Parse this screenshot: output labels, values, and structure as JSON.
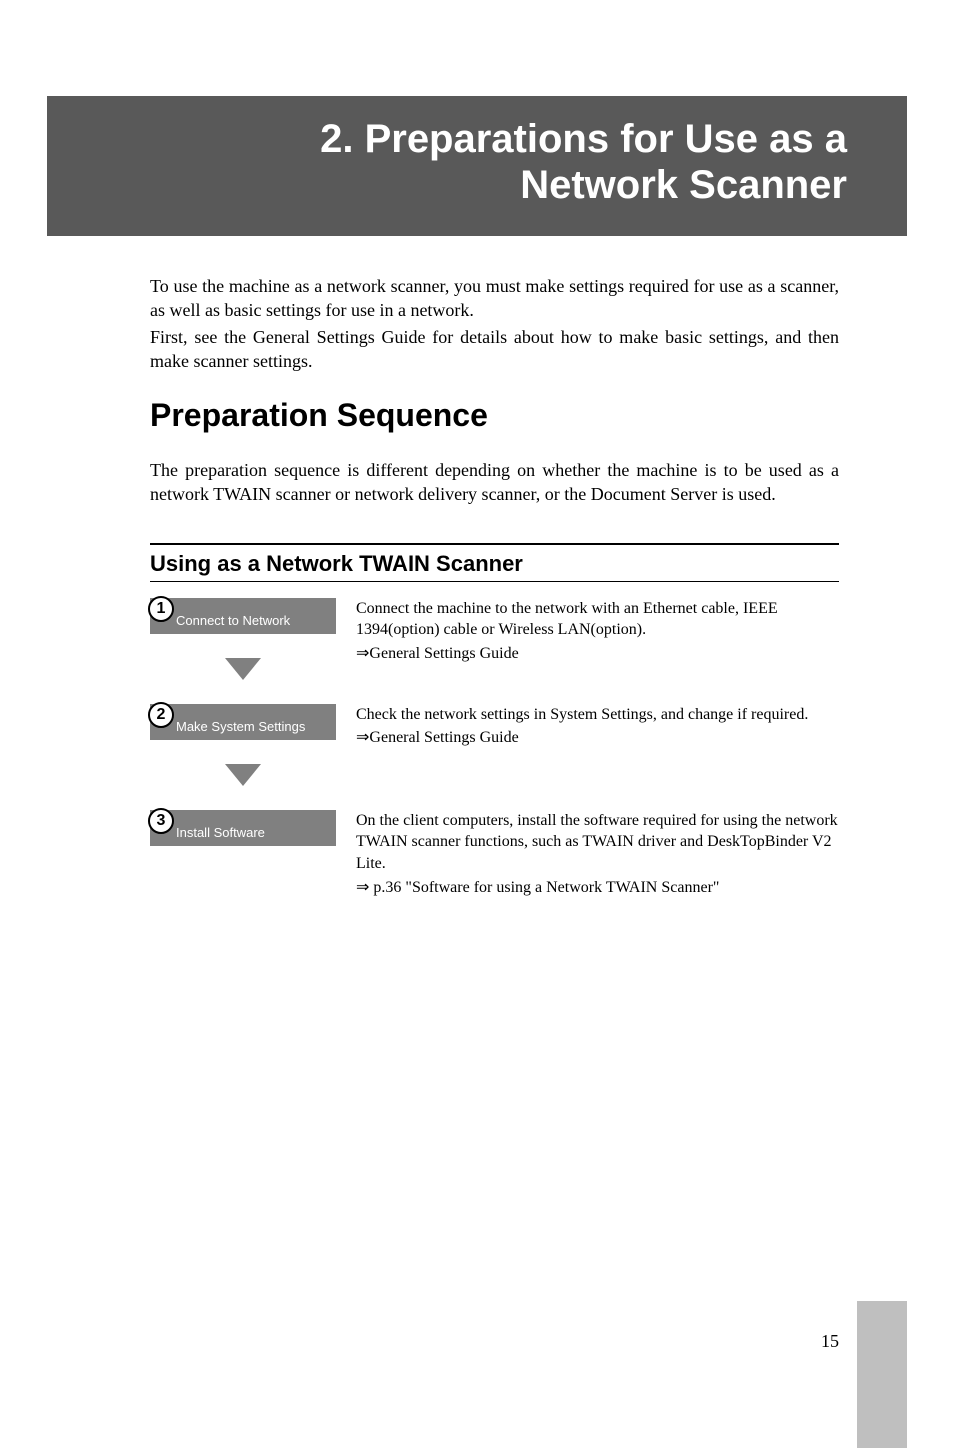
{
  "chapter": {
    "number": "2.",
    "title_line1": "2. Preparations for Use as a",
    "title_line2": "Network Scanner"
  },
  "intro": {
    "p1": "To use the machine as a network scanner, you must make settings required for use as a scanner, as well as basic settings for use in a network.",
    "p2": "First, see the General Settings Guide for details about how to make basic settings, and then make scanner settings."
  },
  "section": {
    "title": "Preparation Sequence",
    "intro": "The preparation sequence is different depending on whether the machine is to be used as a network TWAIN scanner or network delivery scanner, or the Document Server is used."
  },
  "subsection": {
    "title": "Using as a Network TWAIN Scanner"
  },
  "steps": [
    {
      "number": "1",
      "label": "Connect to Network",
      "desc": "Connect the machine to the network with an Ethernet cable, IEEE 1394(option) cable or Wireless LAN(option).",
      "ref": "⇒General Settings Guide"
    },
    {
      "number": "2",
      "label": "Make System Settings",
      "desc": "Check the network settings in System Settings, and change if required.",
      "ref": "⇒General Settings Guide"
    },
    {
      "number": "3",
      "label": "Install Software",
      "desc": "On the client computers, install the software required for using the network TWAIN scanner functions, such as TWAIN driver and DeskTopBinder V2 Lite.",
      "ref": "⇒ p.36 \"Software for using a Network TWAIN Scanner\""
    }
  ],
  "page_number": "15",
  "colors": {
    "chapter_bg": "#595959",
    "step_box_bg": "#808080",
    "sidebar_bg": "#bfbfbf",
    "text": "#000000",
    "white": "#ffffff"
  }
}
